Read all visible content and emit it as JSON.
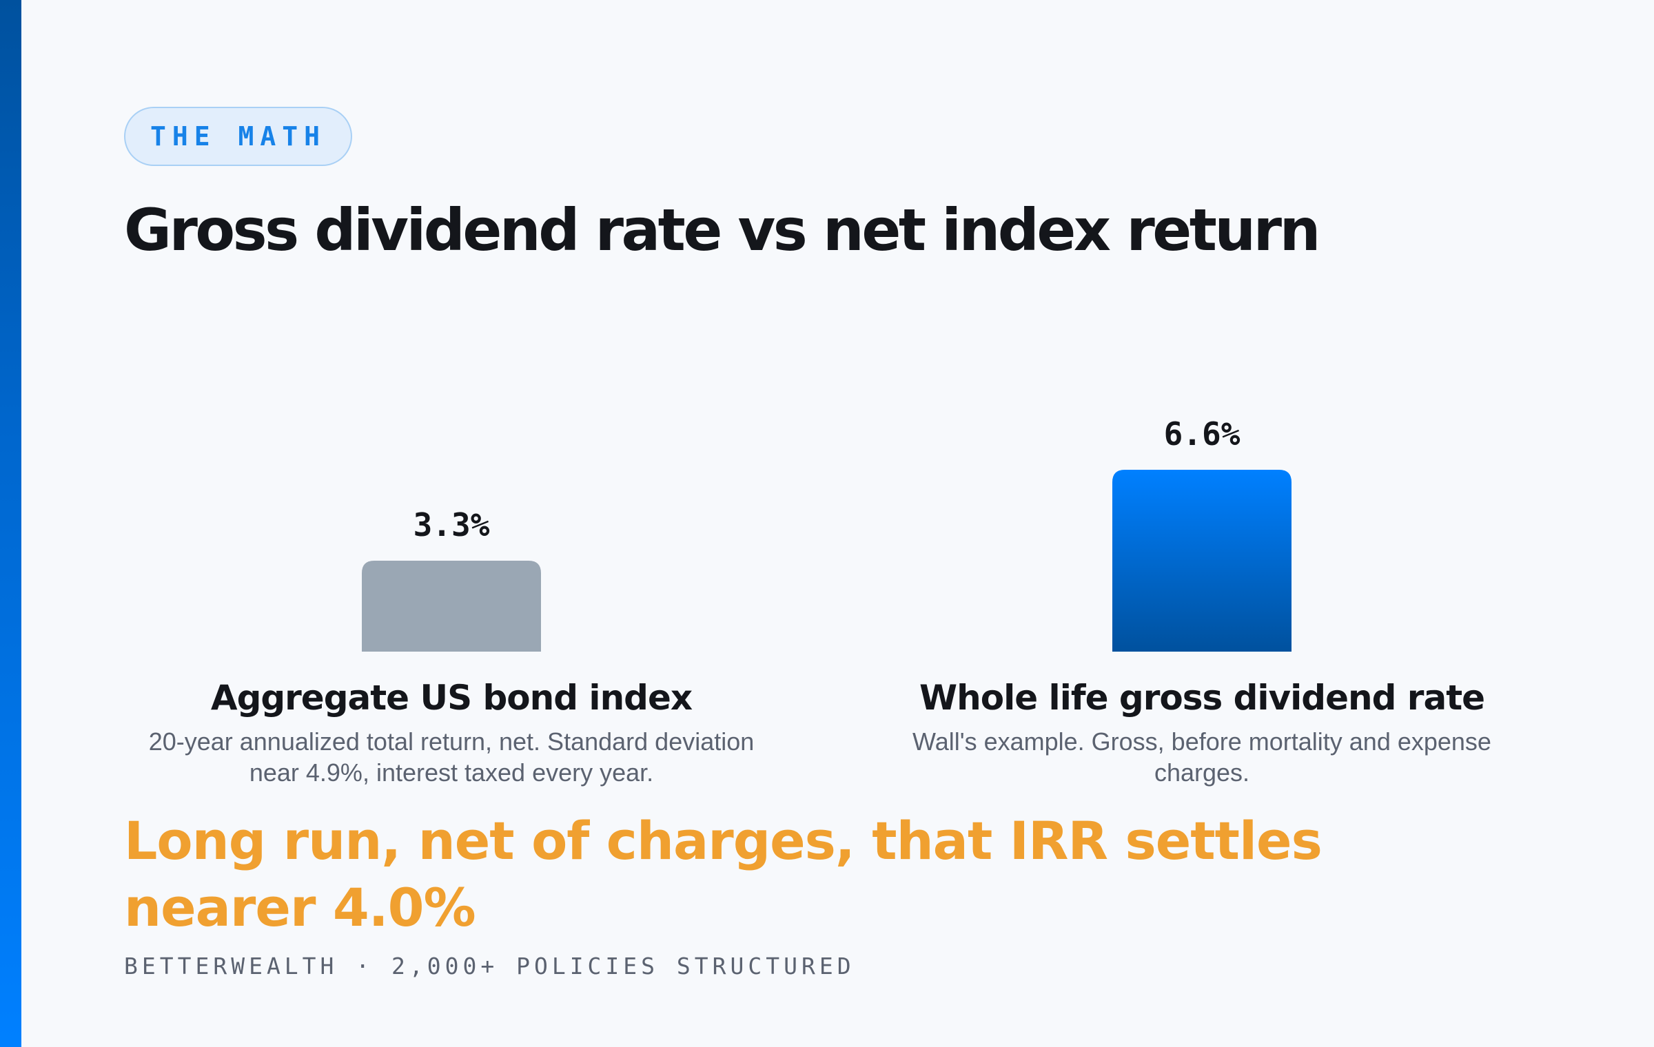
{
  "tag": "THE MATH",
  "title": "Gross dividend rate vs net index return",
  "conclusion": "Long run, net of charges, that IRR settles nearer 4.0%",
  "footer": "BETTERWEALTH · 2,000+ POLICIES STRUCTURED",
  "colors": {
    "accent": "#0080ff",
    "bond_bar": "#9aa7b4",
    "dividend_bar_top": "#0080ff",
    "dividend_bar_bottom": "#00519e",
    "conclusion": "#f0a030"
  },
  "chart_data": {
    "type": "bar",
    "categories": [
      "Aggregate US bond index",
      "Whole life gross dividend rate"
    ],
    "values": [
      3.3,
      6.6
    ],
    "value_labels": [
      "3.3%",
      "6.6%"
    ],
    "descriptions": [
      "20-year annualized total return, net. Standard deviation near 4.9%, interest taxed every year.",
      "Wall's example. Gross, before mortality and expense charges."
    ],
    "title": "Gross dividend rate vs net index return",
    "ylim": [
      0,
      6.6
    ],
    "grid": false
  }
}
